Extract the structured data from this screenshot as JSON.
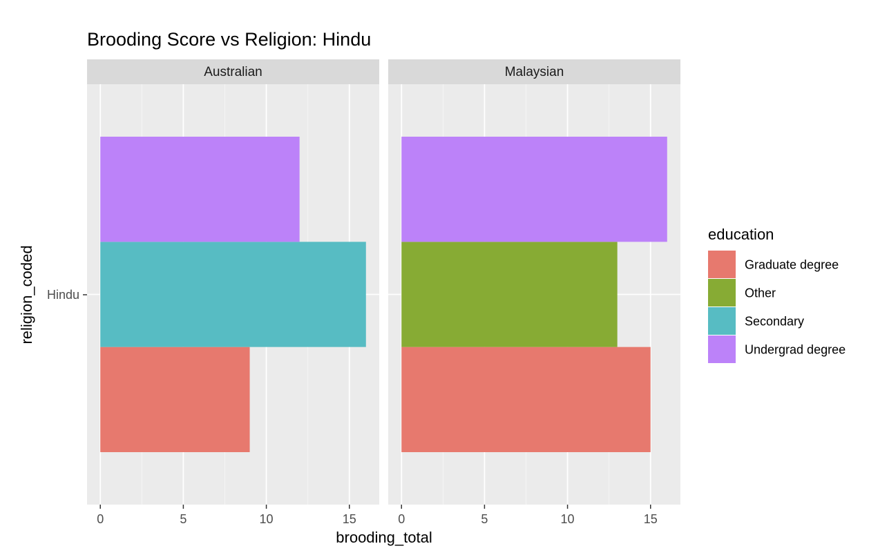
{
  "chart_data": {
    "type": "bar",
    "orientation": "horizontal",
    "position": "dodge",
    "title": "Brooding Score vs Religion: Hindu",
    "xlabel": "brooding_total",
    "ylabel": "religion_coded",
    "y_category": "Hindu",
    "xlim": [
      0,
      16
    ],
    "x_ticks": [
      "0",
      "5",
      "10",
      "15"
    ],
    "x_tick_values": [
      0,
      5,
      10,
      15
    ],
    "facet_by": "nationality",
    "grid": true,
    "legend": {
      "title": "education",
      "placement": "right",
      "entries": [
        {
          "label": "Graduate degree",
          "color": "#E7796E"
        },
        {
          "label": "Other",
          "color": "#87AB34"
        },
        {
          "label": "Secondary",
          "color": "#57BCC3"
        },
        {
          "label": "Undergrad degree",
          "color": "#BC82F9"
        }
      ]
    },
    "panels": [
      {
        "strip": "Australian",
        "bars": [
          {
            "series": "Graduate degree",
            "value": 9
          },
          {
            "series": "Secondary",
            "value": 16
          },
          {
            "series": "Undergrad degree",
            "value": 12
          }
        ]
      },
      {
        "strip": "Malaysian",
        "bars": [
          {
            "series": "Graduate degree",
            "value": 15
          },
          {
            "series": "Other",
            "value": 13
          },
          {
            "series": "Undergrad degree",
            "value": 16
          }
        ]
      }
    ]
  },
  "colors": {
    "panel_background": "#EBEBEB",
    "strip_background": "#D9D9D9",
    "grid_major": "#FFFFFF",
    "grid_minor": "#F5F5F5"
  }
}
